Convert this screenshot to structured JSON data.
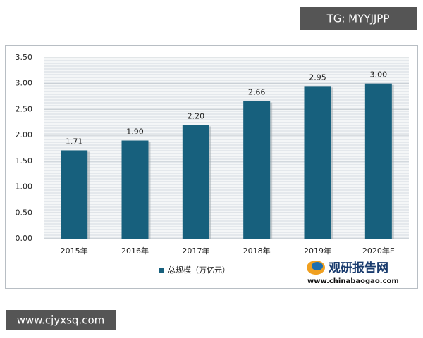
{
  "chart_data": {
    "type": "bar",
    "categories": [
      "2015年",
      "2016年",
      "2017年",
      "2018年",
      "2019年",
      "2020年E"
    ],
    "series": [
      {
        "name": "总规模（万亿元）",
        "color": "#17607d",
        "values": [
          1.71,
          1.9,
          2.2,
          2.66,
          2.95,
          3.0
        ],
        "value_labels": [
          "1.71",
          "1.90",
          "2.20",
          "2.66",
          "2.95",
          "3.00"
        ]
      }
    ],
    "ylim": [
      0,
      3.5
    ],
    "yticks": [
      {
        "value": 0,
        "label": "0.00"
      },
      {
        "value": 0.5,
        "label": "0.50"
      },
      {
        "value": 1,
        "label": "1.00"
      },
      {
        "value": 1.5,
        "label": "1.50"
      },
      {
        "value": 2,
        "label": "2.00"
      },
      {
        "value": 2.5,
        "label": "2.50"
      },
      {
        "value": 3,
        "label": "3.00"
      },
      {
        "value": 3.5,
        "label": "3.50"
      }
    ],
    "grid": true,
    "legend": "bottom"
  },
  "watermarks": {
    "top_right": "TG: MYYJJPP",
    "bottom_left": "www.cjyxsq.com"
  },
  "logo": {
    "name": "观研报告网",
    "url": "www.chinabaogao.com"
  }
}
